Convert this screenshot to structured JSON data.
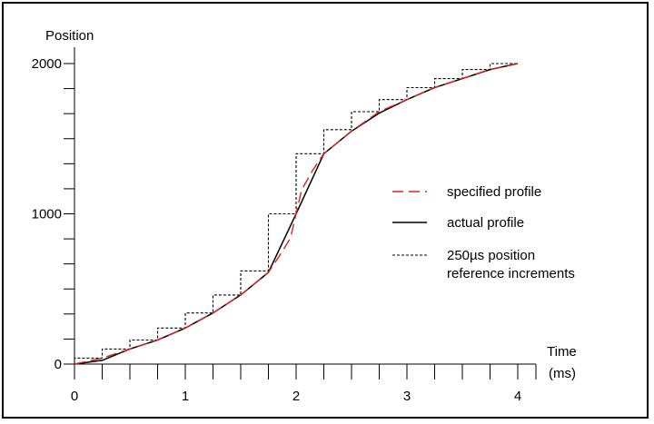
{
  "chart_data": {
    "type": "line",
    "ylabel": "Position",
    "xlabel": [
      "Time",
      "(ms)"
    ],
    "xlim": [
      0,
      4
    ],
    "ylim": [
      0,
      2000
    ],
    "x_tick_labels": [
      "0",
      "1",
      "2",
      "3",
      "4"
    ],
    "y_tick_labels": [
      "0",
      "1000",
      "2000"
    ],
    "x_minor_step": 0.25,
    "grid": false,
    "legend_position": "right",
    "series": [
      {
        "name": "specified profile",
        "style": "dashed",
        "color": "#e0201b",
        "x": [
          0,
          0.25,
          0.5,
          0.75,
          1,
          1.25,
          1.5,
          1.75,
          1.85,
          1.95,
          2,
          2.05,
          2.15,
          2.25,
          2.5,
          2.75,
          3,
          3.25,
          3.5,
          3.75,
          4
        ],
        "y": [
          0,
          40,
          100,
          160,
          240,
          340,
          460,
          610,
          720,
          840,
          1000,
          1160,
          1290,
          1400,
          1550,
          1680,
          1760,
          1840,
          1900,
          1960,
          2000
        ]
      },
      {
        "name": "actual profile",
        "style": "solid",
        "color": "#000000",
        "x": [
          0,
          0.25,
          0.5,
          0.75,
          1,
          1.25,
          1.5,
          1.75,
          2,
          2.25,
          2.5,
          2.75,
          3,
          3.25,
          3.5,
          3.75,
          4
        ],
        "y": [
          0,
          25,
          100,
          160,
          240,
          340,
          460,
          610,
          1000,
          1400,
          1550,
          1670,
          1760,
          1840,
          1900,
          1960,
          2000
        ]
      },
      {
        "name": "250µs position reference increments",
        "legend_lines": [
          "250µs position",
          "reference increments"
        ],
        "style": "dotted-step",
        "color": "#000000",
        "x": [
          0,
          0.25,
          0.5,
          0.75,
          1,
          1.25,
          1.5,
          1.75,
          2,
          2.25,
          2.5,
          2.75,
          3,
          3.25,
          3.5,
          3.75,
          4
        ],
        "y": [
          40,
          100,
          160,
          240,
          340,
          460,
          620,
          1000,
          1400,
          1560,
          1680,
          1760,
          1840,
          1900,
          1960,
          2000,
          2000
        ]
      }
    ]
  },
  "colors": {
    "specified": "#e0201b",
    "actual": "#000000",
    "reference": "#000000"
  }
}
